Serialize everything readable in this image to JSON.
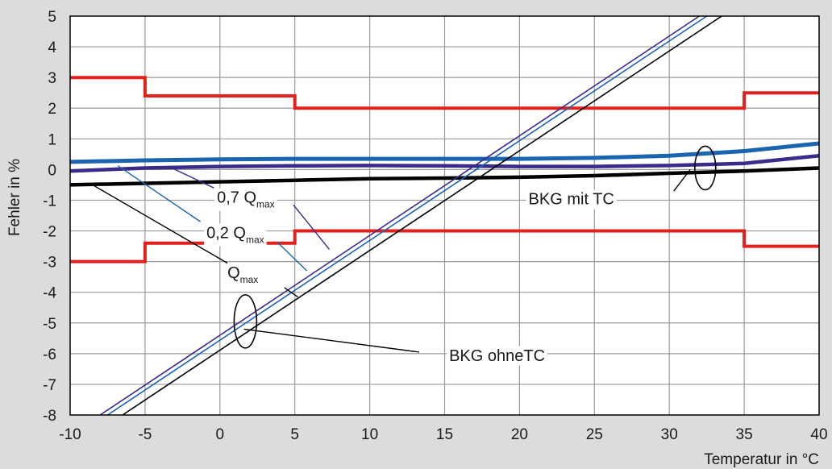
{
  "chart_data": {
    "type": "line",
    "xlabel": "Temperatur in °C",
    "ylabel": "Fehler in %",
    "xlim": [
      -10,
      40
    ],
    "ylim": [
      -8,
      5
    ],
    "xticks": [
      "-10",
      "-5",
      "0",
      "5",
      "10",
      "15",
      "20",
      "25",
      "30",
      "35",
      "40"
    ],
    "yticks": [
      "5",
      "4",
      "3",
      "2",
      "1",
      "0",
      "-1",
      "-2",
      "-3",
      "-4",
      "-5",
      "-6",
      "-7",
      "-8"
    ],
    "grid": true,
    "colors": {
      "limits": "#e2211c",
      "mit_tc_blue": "#1a64b0",
      "mit_tc_purple": "#3a2a8a",
      "mit_tc_black": "#000000",
      "ohne_tc_purple": "#3a2a8a",
      "ohne_tc_blue": "#1a64b0",
      "ohne_tc_black": "#000000"
    },
    "series": [
      {
        "id": "upper_limit",
        "step": true,
        "x": [
          -10,
          -5,
          -5,
          5,
          5,
          35,
          35,
          40
        ],
        "y": [
          3,
          3,
          2.4,
          2.4,
          2,
          2,
          2.5,
          2.5
        ]
      },
      {
        "id": "lower_limit",
        "step": true,
        "x": [
          -10,
          -5,
          -5,
          5,
          5,
          35,
          35,
          40
        ],
        "y": [
          -3,
          -3,
          -2.4,
          -2.4,
          -2,
          -2,
          -2.5,
          -2.5
        ]
      },
      {
        "id": "mit_tc_02",
        "x": [
          -10,
          -5,
          0,
          5,
          10,
          15,
          20,
          25,
          30,
          35,
          40
        ],
        "y": [
          0.25,
          0.3,
          0.33,
          0.35,
          0.35,
          0.35,
          0.35,
          0.38,
          0.45,
          0.6,
          0.85
        ]
      },
      {
        "id": "mit_tc_07",
        "x": [
          -10,
          -5,
          0,
          5,
          10,
          15,
          20,
          25,
          30,
          35,
          40
        ],
        "y": [
          -0.05,
          0.05,
          0.1,
          0.12,
          0.13,
          0.12,
          0.1,
          0.1,
          0.13,
          0.2,
          0.45
        ]
      },
      {
        "id": "mit_tc_qmax",
        "x": [
          -10,
          -5,
          0,
          5,
          10,
          15,
          20,
          25,
          30,
          35,
          40
        ],
        "y": [
          -0.5,
          -0.45,
          -0.4,
          -0.35,
          -0.3,
          -0.28,
          -0.25,
          -0.2,
          -0.12,
          -0.05,
          0.05
        ]
      },
      {
        "id": "ohne_tc_07",
        "x": [
          -8,
          32
        ],
        "y": [
          -8,
          5
        ]
      },
      {
        "id": "ohne_tc_02",
        "x": [
          -7.5,
          32.5
        ],
        "y": [
          -8,
          5
        ]
      },
      {
        "id": "ohne_tc_qmax",
        "x": [
          -6.5,
          33.5
        ],
        "y": [
          -8,
          5
        ]
      }
    ],
    "annotations": [
      {
        "id": "label_07",
        "text": "0,7 Q",
        "subscript": "max",
        "x": -0.2,
        "y": -0.9
      },
      {
        "id": "label_02",
        "text": "0,2 Q",
        "subscript": "max",
        "x": -0.9,
        "y": -2.05
      },
      {
        "id": "label_q",
        "text": "Q",
        "subscript": "max",
        "x": 0.5,
        "y": -3.35
      },
      {
        "id": "label_mit",
        "text": "BKG mit TC",
        "x": 20.6,
        "y": -0.95
      },
      {
        "id": "label_ohne",
        "text": "BKG ohneTC",
        "x": 15.3,
        "y": -6.05
      }
    ]
  }
}
